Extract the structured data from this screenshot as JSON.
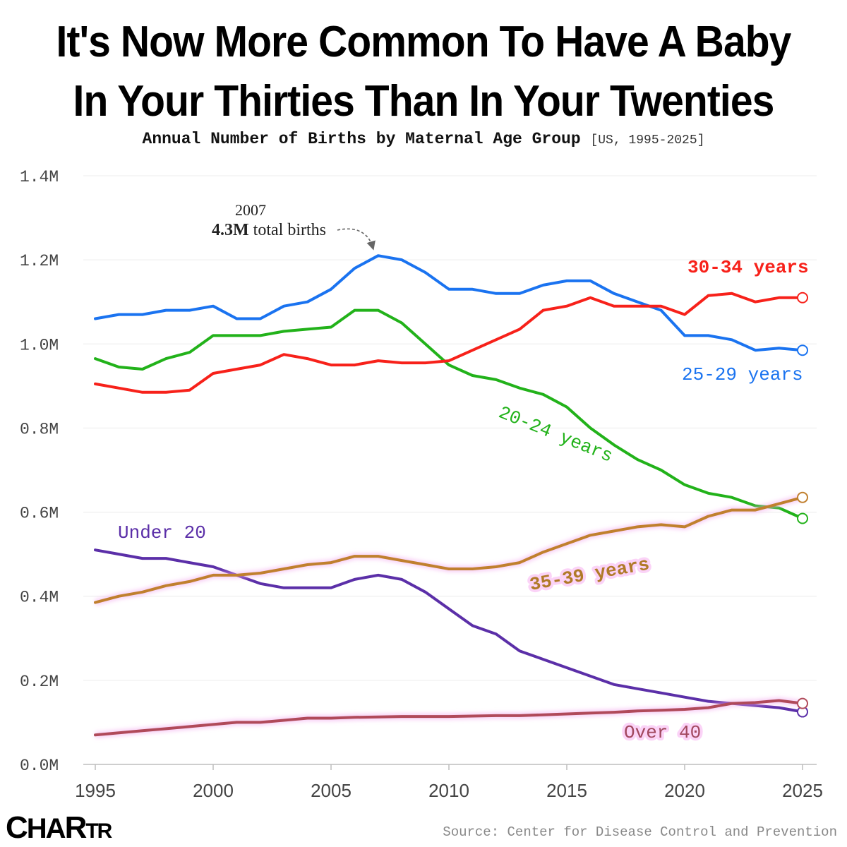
{
  "title_line1": "It's Now More Common To Have A Baby",
  "title_line2": "In Your Thirties Than In Your Twenties",
  "subtitle_main": "Annual Number of Births by Maternal Age Group",
  "subtitle_note": "[US, 1995-2025]",
  "source": "Source: Center for Disease Control and Prevention",
  "logo": {
    "big1": "C",
    "mid": "HA",
    "big2": "R",
    "small": "TR"
  },
  "annotation": {
    "year": "2007",
    "bold": "4.3M",
    "rest": "total births"
  },
  "chart_data": {
    "type": "line",
    "x": [
      1995,
      1996,
      1997,
      1998,
      1999,
      2000,
      2001,
      2002,
      2003,
      2004,
      2005,
      2006,
      2007,
      2008,
      2009,
      2010,
      2011,
      2012,
      2013,
      2014,
      2015,
      2016,
      2017,
      2018,
      2019,
      2020,
      2021,
      2022,
      2023,
      2024,
      2025
    ],
    "xticks": [
      "1995",
      "2000",
      "2005",
      "2010",
      "2015",
      "2020",
      "2025"
    ],
    "yticks": [
      "0.0M",
      "0.2M",
      "0.4M",
      "0.6M",
      "0.8M",
      "1.0M",
      "1.2M",
      "1.4M"
    ],
    "ylim": [
      0,
      1.4
    ],
    "xlim": [
      1995,
      2025
    ],
    "grid": true,
    "series": [
      {
        "name": "Under 20",
        "color": "#5b2fa8",
        "label_color": "#5b2fa8",
        "values": [
          0.51,
          0.5,
          0.49,
          0.49,
          0.48,
          0.47,
          0.45,
          0.43,
          0.42,
          0.42,
          0.42,
          0.44,
          0.45,
          0.44,
          0.41,
          0.37,
          0.33,
          0.31,
          0.27,
          0.25,
          0.23,
          0.21,
          0.19,
          0.18,
          0.17,
          0.16,
          0.15,
          0.145,
          0.14,
          0.135,
          0.125
        ]
      },
      {
        "name": "20-24 years",
        "color": "#22b21a",
        "label_color": "#22b21a",
        "values": [
          0.965,
          0.945,
          0.94,
          0.965,
          0.98,
          1.02,
          1.02,
          1.02,
          1.03,
          1.035,
          1.04,
          1.08,
          1.08,
          1.05,
          1.0,
          0.95,
          0.925,
          0.915,
          0.895,
          0.88,
          0.85,
          0.8,
          0.76,
          0.725,
          0.7,
          0.665,
          0.645,
          0.635,
          0.615,
          0.61,
          0.585
        ]
      },
      {
        "name": "25-29 years",
        "color": "#1a73f0",
        "label_color": "#1a73f0",
        "values": [
          1.06,
          1.07,
          1.07,
          1.08,
          1.08,
          1.09,
          1.06,
          1.06,
          1.09,
          1.1,
          1.13,
          1.18,
          1.21,
          1.2,
          1.17,
          1.13,
          1.13,
          1.12,
          1.12,
          1.14,
          1.15,
          1.15,
          1.12,
          1.1,
          1.08,
          1.02,
          1.02,
          1.01,
          0.985,
          0.99,
          0.985
        ]
      },
      {
        "name": "30-34 years",
        "color": "#f7211a",
        "label_color": "#f7211a",
        "values": [
          0.905,
          0.895,
          0.885,
          0.885,
          0.89,
          0.93,
          0.94,
          0.95,
          0.975,
          0.965,
          0.95,
          0.95,
          0.96,
          0.955,
          0.955,
          0.96,
          0.985,
          1.01,
          1.035,
          1.08,
          1.09,
          1.11,
          1.09,
          1.09,
          1.09,
          1.07,
          1.115,
          1.12,
          1.1,
          1.11,
          1.11
        ]
      },
      {
        "name": "35-39 years",
        "color": "#c0802e",
        "label_color": "#b07a28",
        "values": [
          0.385,
          0.4,
          0.41,
          0.425,
          0.435,
          0.45,
          0.45,
          0.455,
          0.465,
          0.475,
          0.48,
          0.495,
          0.495,
          0.485,
          0.475,
          0.465,
          0.465,
          0.47,
          0.48,
          0.505,
          0.525,
          0.545,
          0.555,
          0.565,
          0.57,
          0.565,
          0.59,
          0.605,
          0.605,
          0.62,
          0.635
        ]
      },
      {
        "name": "Over 40",
        "color": "#b04a5a",
        "label_color": "#a2485f",
        "values": [
          0.07,
          0.075,
          0.08,
          0.085,
          0.09,
          0.095,
          0.1,
          0.1,
          0.105,
          0.11,
          0.11,
          0.112,
          0.113,
          0.114,
          0.114,
          0.114,
          0.115,
          0.116,
          0.116,
          0.118,
          0.12,
          0.122,
          0.124,
          0.127,
          0.129,
          0.131,
          0.135,
          0.145,
          0.147,
          0.152,
          0.145
        ]
      }
    ]
  }
}
